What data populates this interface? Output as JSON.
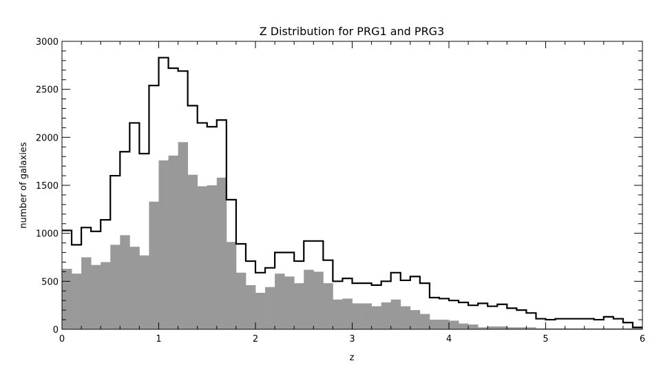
{
  "chart_data": {
    "type": "histogram",
    "title": "Z Distribution for PRG1 and PRG3",
    "xlabel": "z",
    "ylabel": "number of galaxies",
    "xlim": [
      0,
      6
    ],
    "ylim": [
      0,
      3000
    ],
    "bin_width": 0.1,
    "x_ticks": [
      "0",
      "1",
      "2",
      "3",
      "4",
      "5",
      "6"
    ],
    "y_ticks": [
      "0",
      "500",
      "1000",
      "1500",
      "2000",
      "2500",
      "3000"
    ],
    "series": [
      {
        "style": "step-outline",
        "color": "#000000",
        "bin_starts": [
          0.0,
          0.1,
          0.2,
          0.3,
          0.4,
          0.5,
          0.6,
          0.7,
          0.8,
          0.9,
          1.0,
          1.1,
          1.2,
          1.3,
          1.4,
          1.5,
          1.6,
          1.7,
          1.8,
          1.9,
          2.0,
          2.1,
          2.2,
          2.3,
          2.4,
          2.5,
          2.6,
          2.7,
          2.8,
          2.9,
          3.0,
          3.1,
          3.2,
          3.3,
          3.4,
          3.5,
          3.6,
          3.7,
          3.8,
          3.9,
          4.0,
          4.1,
          4.2,
          4.3,
          4.4,
          4.5,
          4.6,
          4.7,
          4.8,
          4.9,
          5.0,
          5.1,
          5.2,
          5.3,
          5.4,
          5.5,
          5.6,
          5.7,
          5.8,
          5.9
        ],
        "values": [
          1030,
          880,
          1060,
          1020,
          1140,
          1600,
          1850,
          2150,
          1830,
          2540,
          2830,
          2720,
          2690,
          2330,
          2150,
          2110,
          2180,
          1350,
          890,
          710,
          590,
          640,
          800,
          800,
          710,
          920,
          920,
          720,
          500,
          530,
          480,
          480,
          460,
          500,
          590,
          510,
          550,
          480,
          330,
          320,
          300,
          280,
          250,
          270,
          240,
          260,
          220,
          200,
          170,
          110,
          100,
          110,
          110,
          110,
          110,
          100,
          130,
          110,
          70,
          20
        ]
      },
      {
        "style": "filled",
        "color": "#999999",
        "bin_starts": [
          0.0,
          0.1,
          0.2,
          0.3,
          0.4,
          0.5,
          0.6,
          0.7,
          0.8,
          0.9,
          1.0,
          1.1,
          1.2,
          1.3,
          1.4,
          1.5,
          1.6,
          1.7,
          1.8,
          1.9,
          2.0,
          2.1,
          2.2,
          2.3,
          2.4,
          2.5,
          2.6,
          2.7,
          2.8,
          2.9,
          3.0,
          3.1,
          3.2,
          3.3,
          3.4,
          3.5,
          3.6,
          3.7,
          3.8,
          3.9,
          4.0,
          4.1,
          4.2,
          4.3,
          4.4,
          4.5,
          4.6,
          4.7,
          4.8,
          4.9,
          5.0,
          5.1,
          5.2,
          5.3,
          5.4,
          5.5,
          5.6,
          5.7,
          5.8,
          5.9
        ],
        "values": [
          630,
          580,
          750,
          670,
          700,
          880,
          980,
          860,
          770,
          1330,
          1760,
          1810,
          1950,
          1610,
          1490,
          1500,
          1580,
          910,
          590,
          460,
          380,
          440,
          580,
          550,
          480,
          620,
          600,
          480,
          310,
          320,
          270,
          270,
          240,
          280,
          310,
          240,
          200,
          160,
          100,
          100,
          90,
          60,
          50,
          20,
          30,
          30,
          20,
          20,
          20,
          10,
          10,
          10,
          10,
          10,
          10,
          10,
          10,
          10,
          10,
          10
        ]
      }
    ]
  }
}
